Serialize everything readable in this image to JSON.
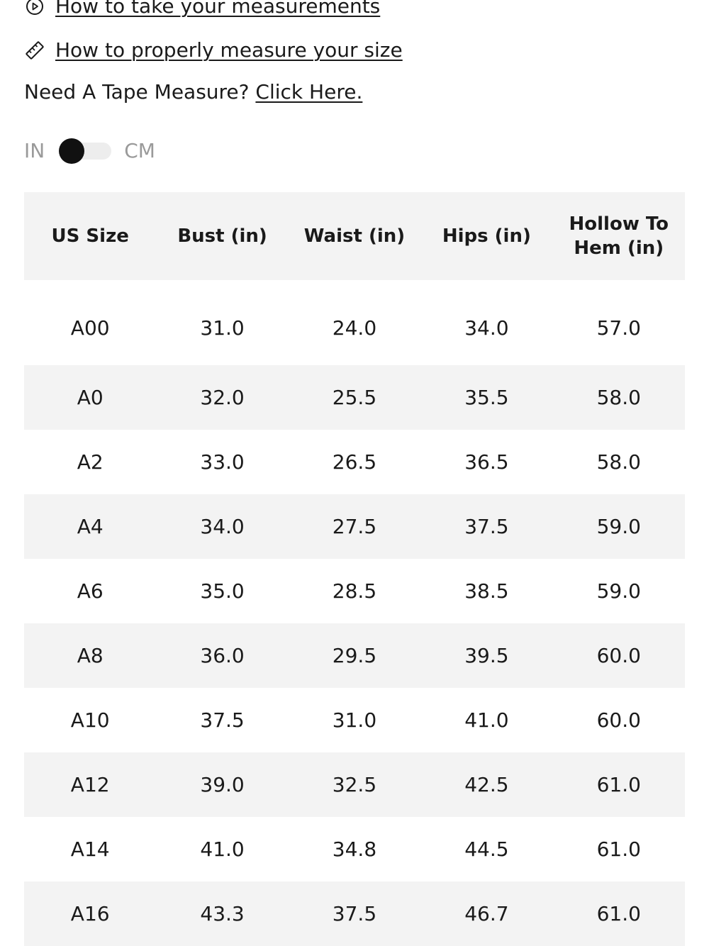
{
  "links": {
    "video_label": "How to take your measurements",
    "measure_label": "How to properly measure your size",
    "tape_prefix": "Need A Tape Measure? ",
    "tape_link": "Click Here."
  },
  "unit_toggle": {
    "left_label": "IN",
    "right_label": "CM",
    "selected": "IN"
  },
  "table": {
    "headers": [
      "US Size",
      "Bust (in)",
      "Waist (in)",
      "Hips (in)",
      "Hollow To Hem (in)"
    ],
    "rows": [
      [
        "A00",
        "31.0",
        "24.0",
        "34.0",
        "57.0"
      ],
      [
        "A0",
        "32.0",
        "25.5",
        "35.5",
        "58.0"
      ],
      [
        "A2",
        "33.0",
        "26.5",
        "36.5",
        "58.0"
      ],
      [
        "A4",
        "34.0",
        "27.5",
        "37.5",
        "59.0"
      ],
      [
        "A6",
        "35.0",
        "28.5",
        "38.5",
        "59.0"
      ],
      [
        "A8",
        "36.0",
        "29.5",
        "39.5",
        "60.0"
      ],
      [
        "A10",
        "37.5",
        "31.0",
        "41.0",
        "60.0"
      ],
      [
        "A12",
        "39.0",
        "32.5",
        "42.5",
        "61.0"
      ],
      [
        "A14",
        "41.0",
        "34.8",
        "44.5",
        "61.0"
      ],
      [
        "A16",
        "43.3",
        "37.5",
        "46.7",
        "61.0"
      ]
    ]
  },
  "icons": {
    "video": "play-circle-icon",
    "measure": "ruler-icon"
  },
  "colors": {
    "text": "#1a1a1a",
    "muted": "#9a9a9a",
    "stripe": "#f3f3f3",
    "toggle_knob": "#111111"
  }
}
